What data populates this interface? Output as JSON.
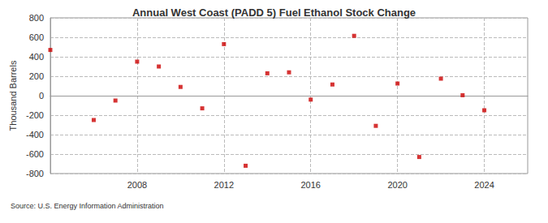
{
  "chart_data": {
    "type": "scatter",
    "title": "Annual West Coast (PADD 5) Fuel Ethanol Stock Change",
    "y_label": "Thousand Barrels",
    "source": "Source: U.S. Energy Information Administration",
    "x": [
      2004,
      2006,
      2007,
      2008,
      2009,
      2010,
      2011,
      2012,
      2013,
      2014,
      2015,
      2016,
      2017,
      2018,
      2019,
      2020,
      2021,
      2022,
      2023,
      2024
    ],
    "values": [
      470,
      -250,
      -50,
      350,
      300,
      90,
      -130,
      530,
      -720,
      230,
      240,
      -40,
      115,
      615,
      -310,
      125,
      -630,
      175,
      5,
      -150
    ],
    "color": "#cc0000",
    "marker": "square",
    "xlim": [
      2004,
      2026
    ],
    "xticks": [
      2008,
      2012,
      2016,
      2020,
      2024
    ],
    "ylim": [
      -800,
      800
    ],
    "yticks": [
      -800,
      -600,
      -400,
      -200,
      0,
      200,
      400,
      600,
      800
    ],
    "grid": true
  }
}
